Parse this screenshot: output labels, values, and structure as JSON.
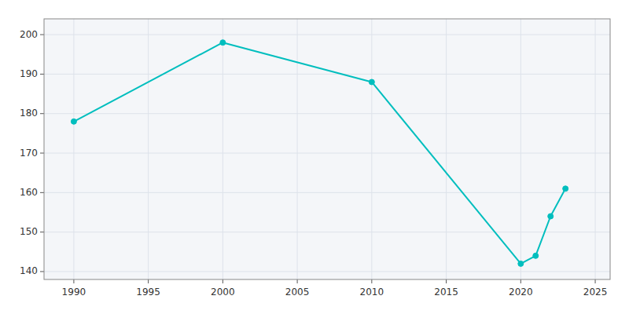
{
  "chart_data": {
    "type": "line",
    "x": [
      1990,
      2000,
      2010,
      2020,
      2021,
      2022,
      2023
    ],
    "values": [
      178,
      198,
      188,
      142,
      144,
      154,
      161
    ],
    "color": "#00BEBE",
    "marker": "circle",
    "xlim": [
      1988,
      2026
    ],
    "ylim": [
      138,
      204
    ],
    "xticks": [
      1990,
      1995,
      2000,
      2005,
      2010,
      2015,
      2020,
      2025
    ],
    "yticks": [
      140,
      150,
      160,
      170,
      180,
      190,
      200
    ],
    "grid": true
  }
}
